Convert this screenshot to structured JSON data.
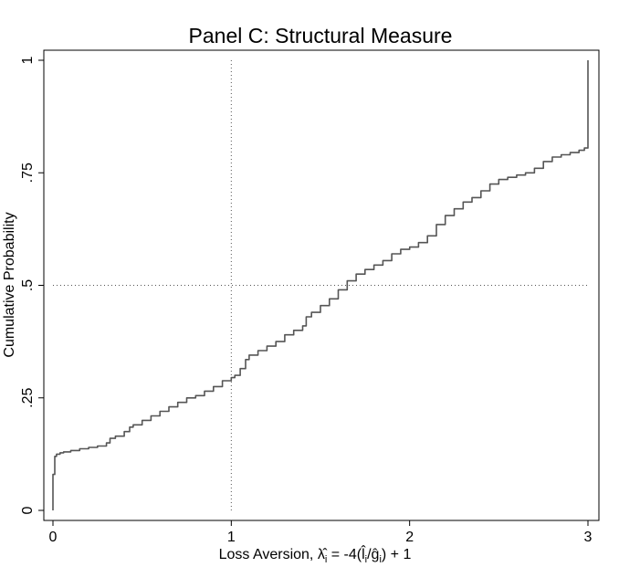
{
  "chart_data": {
    "type": "line",
    "title": "Panel C: Structural Measure",
    "xlabel": {
      "prefix": "Loss Aversion, ",
      "lambda": "λ̂",
      "lambda_sub": "i",
      "mid": " = -4(",
      "l": "l̂",
      "l_sub": "i",
      "slash": "/",
      "g": "ĝ",
      "g_sub": "i",
      "suffix": ") + 1"
    },
    "ylabel": "Cumulative Probability",
    "xlim": [
      0,
      3
    ],
    "ylim": [
      0,
      1
    ],
    "xticks": [
      {
        "value": 0,
        "label": "0"
      },
      {
        "value": 1,
        "label": "1"
      },
      {
        "value": 2,
        "label": "2"
      },
      {
        "value": 3,
        "label": "3"
      }
    ],
    "yticks": [
      {
        "value": 0,
        "label": "0"
      },
      {
        "value": 0.25,
        "label": ".25"
      },
      {
        "value": 0.5,
        "label": ".5"
      },
      {
        "value": 0.75,
        "label": ".75"
      },
      {
        "value": 1,
        "label": "1"
      }
    ],
    "reference_lines": {
      "x": 1,
      "y": 0.5,
      "style": "dotted"
    },
    "grid": false,
    "legend": "none",
    "line_color": "#555555",
    "series": [
      {
        "x": [
          0,
          0,
          0.01,
          0.02,
          0.04,
          0.06,
          0.1,
          0.15,
          0.2,
          0.25,
          0.3,
          0.32,
          0.35,
          0.4,
          0.43,
          0.45,
          0.5,
          0.55,
          0.6,
          0.65,
          0.7,
          0.75,
          0.8,
          0.85,
          0.9,
          0.95,
          1.0,
          1.02,
          1.05,
          1.08,
          1.1,
          1.15,
          1.2,
          1.25,
          1.3,
          1.35,
          1.4,
          1.42,
          1.45,
          1.5,
          1.55,
          1.6,
          1.65,
          1.7,
          1.75,
          1.8,
          1.85,
          1.9,
          1.95,
          2.0,
          2.05,
          2.1,
          2.15,
          2.2,
          2.25,
          2.3,
          2.35,
          2.4,
          2.45,
          2.5,
          2.55,
          2.6,
          2.65,
          2.7,
          2.75,
          2.8,
          2.85,
          2.9,
          2.95,
          2.98,
          3.0,
          3.0,
          3.0
        ],
        "y": [
          0,
          0.08,
          0.12,
          0.125,
          0.128,
          0.13,
          0.133,
          0.137,
          0.14,
          0.143,
          0.15,
          0.16,
          0.165,
          0.175,
          0.185,
          0.19,
          0.2,
          0.21,
          0.22,
          0.23,
          0.24,
          0.25,
          0.255,
          0.265,
          0.275,
          0.288,
          0.295,
          0.3,
          0.315,
          0.335,
          0.345,
          0.355,
          0.365,
          0.375,
          0.39,
          0.4,
          0.41,
          0.43,
          0.44,
          0.455,
          0.47,
          0.49,
          0.51,
          0.525,
          0.535,
          0.545,
          0.555,
          0.57,
          0.58,
          0.585,
          0.595,
          0.61,
          0.635,
          0.655,
          0.67,
          0.685,
          0.695,
          0.71,
          0.725,
          0.735,
          0.74,
          0.745,
          0.75,
          0.76,
          0.775,
          0.785,
          0.79,
          0.795,
          0.8,
          0.805,
          0.81,
          0.96,
          1.0
        ]
      }
    ]
  }
}
